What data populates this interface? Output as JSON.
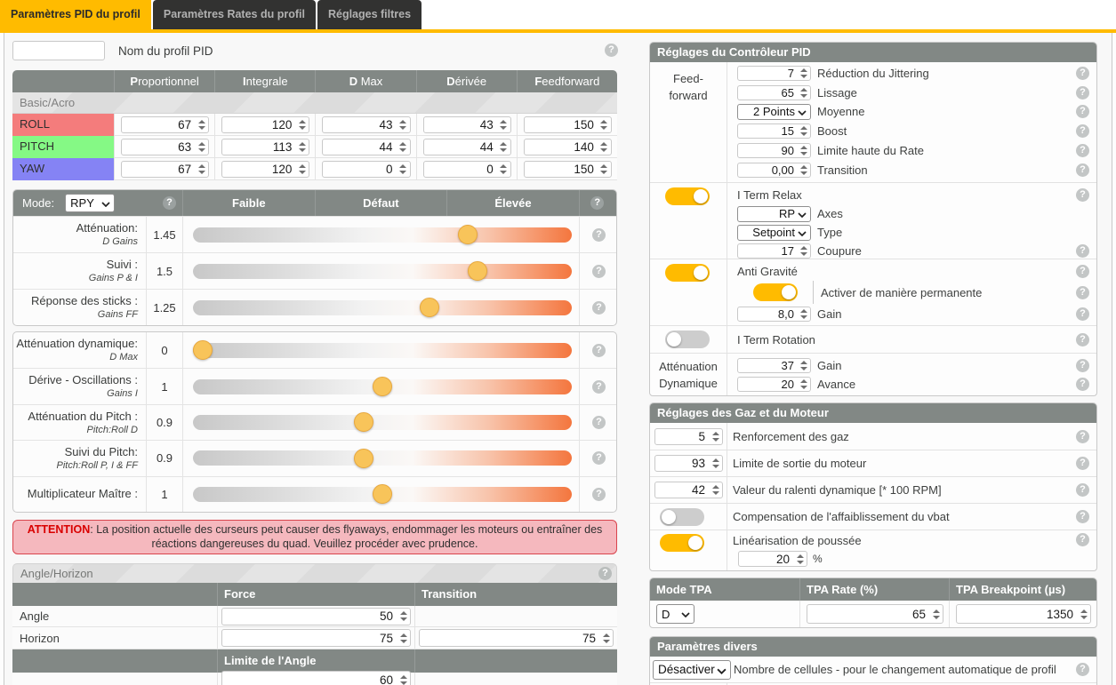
{
  "accent_color": "#ffbb00",
  "header_color": "#828885",
  "icons": {
    "help": "?"
  },
  "tabs": [
    {
      "label": "Paramètres PID du profil",
      "active": true
    },
    {
      "label": "Paramètres Rates du profil",
      "active": false
    },
    {
      "label": "Réglages filtres",
      "active": false
    }
  ],
  "profile_name": {
    "label": "Nom du profil PID",
    "value": ""
  },
  "pid_table": {
    "headers": [
      "Proportionnel",
      "Integrale",
      "D Max",
      "Dérivée",
      "Feedforward"
    ],
    "subheader": "Basic/Acro",
    "rows": [
      {
        "axis": "ROLL",
        "color": "#f47c7c",
        "values": [
          "67",
          "120",
          "43",
          "43",
          "150"
        ]
      },
      {
        "axis": "PITCH",
        "color": "#85f985",
        "values": [
          "63",
          "113",
          "44",
          "44",
          "140"
        ]
      },
      {
        "axis": "YAW",
        "color": "#8583f4",
        "values": [
          "67",
          "120",
          "0",
          "0",
          "150"
        ]
      }
    ]
  },
  "sliders": {
    "mode_label": "Mode:",
    "mode_value": "RPY",
    "col_headers": [
      "Faible",
      "Défaut",
      "Élevée"
    ],
    "group1": [
      {
        "label": "Atténuation:",
        "sublabel": "D Gains",
        "value": "1.45",
        "pct": 72.5
      },
      {
        "label": "Suivi :",
        "sublabel": "Gains P & I",
        "value": "1.5",
        "pct": 75
      },
      {
        "label": "Réponse des sticks :",
        "sublabel": "Gains FF",
        "value": "1.25",
        "pct": 62.5
      }
    ],
    "group2": [
      {
        "label": "Atténuation dynamique:",
        "sublabel": "D Max",
        "value": "0",
        "pct": 0
      },
      {
        "label": "Dérive - Oscillations :",
        "sublabel": "Gains I",
        "value": "1",
        "pct": 50
      },
      {
        "label": "Atténuation du Pitch :",
        "sublabel": "Pitch:Roll D",
        "value": "0.9",
        "pct": 45
      },
      {
        "label": "Suivi du Pitch:",
        "sublabel": "Pitch:Roll P, I & FF",
        "value": "0.9",
        "pct": 45
      },
      {
        "label": "Multiplicateur Maître :",
        "sublabel": "",
        "value": "1",
        "pct": 50
      }
    ]
  },
  "warning": {
    "title": "ATTENTION",
    "text": ": La position actuelle des curseurs peut causer des flyaways, endommager les moteurs ou entraîner des réactions dangereuses du quad. Veuillez procéder avec prudence."
  },
  "angle_horizon": {
    "title": "Angle/Horizon",
    "col_force": "Force",
    "col_transition": "Transition",
    "rows": [
      {
        "label": "Angle",
        "force": "50",
        "transition": null
      },
      {
        "label": "Horizon",
        "force": "75",
        "transition": "75"
      }
    ],
    "subheader": "Limite de l'Angle",
    "angle_limit": "60"
  },
  "pid_controller": {
    "title": "Réglages du Contrôleur PID",
    "feedforward": {
      "group_label_1": "Feed-",
      "group_label_2": "forward",
      "jitter": {
        "value": "7",
        "label": "Réduction du Jittering"
      },
      "smoothness": {
        "value": "65",
        "label": "Lissage"
      },
      "averaging": {
        "value": "2 Points",
        "label": "Moyenne"
      },
      "boost": {
        "value": "15",
        "label": "Boost"
      },
      "max_rate_limit": {
        "value": "90",
        "label": "Limite haute du Rate"
      },
      "transition": {
        "value": "0,00",
        "label": "Transition"
      }
    },
    "iterm_relax": {
      "title": "I Term Relax",
      "enabled": true,
      "axes": {
        "value": "RP",
        "label": "Axes"
      },
      "type": {
        "value": "Setpoint",
        "label": "Type"
      },
      "cutoff": {
        "value": "17",
        "label": "Coupure"
      }
    },
    "anti_gravity": {
      "title": "Anti Gravité",
      "enabled": true,
      "permanent": {
        "label": "Activer de manière permanente",
        "enabled": true
      },
      "gain": {
        "value": "8,0",
        "label": "Gain"
      }
    },
    "iterm_rotation": {
      "title": "I Term Rotation",
      "enabled": false
    },
    "dyn_damping": {
      "group_label_1": "Atténuation",
      "group_label_2": "Dynamique",
      "gain": {
        "value": "37",
        "label": "Gain"
      },
      "advance": {
        "value": "20",
        "label": "Avance"
      }
    }
  },
  "throttle_motor": {
    "title": "Réglages des Gaz et du Moteur",
    "throttle_boost": {
      "value": "5",
      "label": "Renforcement des gaz"
    },
    "motor_limit": {
      "value": "93",
      "label": "Limite de sortie du moteur"
    },
    "dyn_idle": {
      "value": "42",
      "label": "Valeur du ralenti dynamique [* 100 RPM]"
    },
    "vbat_comp": {
      "label": "Compensation de l'affaiblissement du vbat",
      "enabled": false
    },
    "thrust_linear": {
      "label": "Linéarisation de poussée",
      "enabled": true,
      "value": "20",
      "unit": "%"
    }
  },
  "tpa": {
    "col_mode": "Mode TPA",
    "col_rate": "TPA Rate (%)",
    "col_breakpoint": "TPA Breakpoint (µs)",
    "mode": "D",
    "rate": "65",
    "breakpoint": "1350"
  },
  "misc": {
    "title": "Paramètres divers",
    "cells_value": "Désactiver",
    "cells_label": "Nombre de cellules - pour le changement automatique de profil"
  }
}
